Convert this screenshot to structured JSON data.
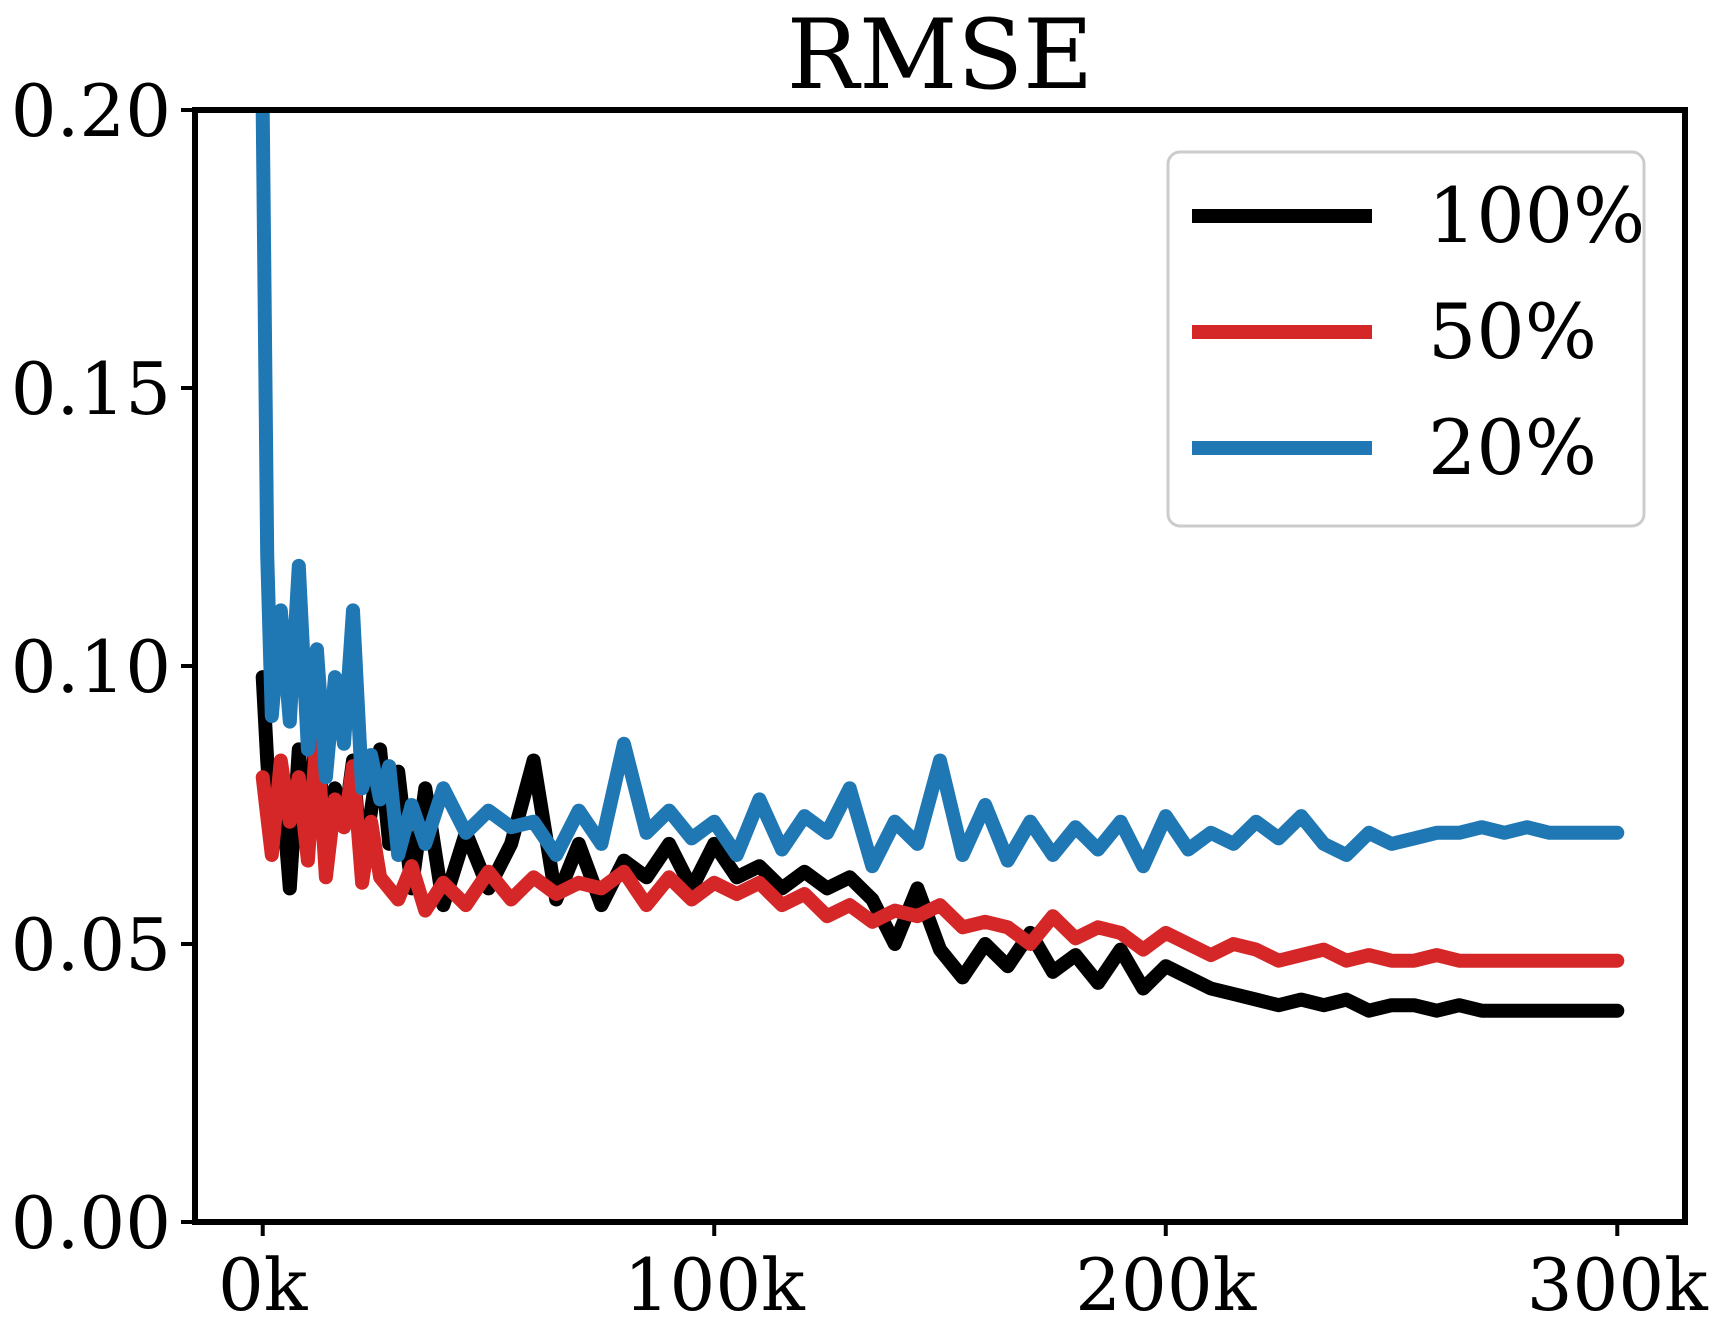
{
  "chart_data": {
    "type": "line",
    "title": "RMSE",
    "xlabel": "",
    "ylabel": "",
    "xlim": [
      -15000,
      315000
    ],
    "ylim": [
      0.0,
      0.2
    ],
    "xticks": [
      0,
      100000,
      200000,
      300000
    ],
    "xtick_labels": [
      "0k",
      "100k",
      "200k",
      "300k"
    ],
    "yticks": [
      0.0,
      0.05,
      0.1,
      0.15,
      0.2
    ],
    "ytick_labels": [
      "0.00",
      "0.05",
      "0.10",
      "0.15",
      "0.20"
    ],
    "grid": false,
    "legend_position": "top-right",
    "x": [
      0,
      1000,
      2000,
      4000,
      6000,
      8000,
      10000,
      12000,
      14000,
      16000,
      18000,
      20000,
      22000,
      24000,
      26000,
      28000,
      30000,
      33000,
      36000,
      40000,
      45000,
      50000,
      55000,
      60000,
      65000,
      70000,
      75000,
      80000,
      85000,
      90000,
      95000,
      100000,
      105000,
      110000,
      115000,
      120000,
      125000,
      130000,
      135000,
      140000,
      145000,
      150000,
      155000,
      160000,
      165000,
      170000,
      175000,
      180000,
      185000,
      190000,
      195000,
      200000,
      205000,
      210000,
      215000,
      220000,
      225000,
      230000,
      235000,
      240000,
      245000,
      250000,
      255000,
      260000,
      265000,
      270000,
      275000,
      280000,
      285000,
      290000,
      295000,
      300000
    ],
    "series": [
      {
        "name": "100%",
        "color": "#000000",
        "values": [
          0.098,
          0.083,
          0.071,
          0.08,
          0.06,
          0.085,
          0.066,
          0.091,
          0.064,
          0.078,
          0.071,
          0.083,
          0.063,
          0.074,
          0.085,
          0.068,
          0.081,
          0.06,
          0.078,
          0.057,
          0.07,
          0.06,
          0.068,
          0.083,
          0.058,
          0.068,
          0.057,
          0.065,
          0.062,
          0.068,
          0.06,
          0.068,
          0.062,
          0.064,
          0.06,
          0.063,
          0.06,
          0.062,
          0.058,
          0.05,
          0.06,
          0.049,
          0.044,
          0.05,
          0.046,
          0.052,
          0.045,
          0.048,
          0.043,
          0.049,
          0.042,
          0.046,
          0.044,
          0.042,
          0.041,
          0.04,
          0.039,
          0.04,
          0.039,
          0.04,
          0.038,
          0.039,
          0.039,
          0.038,
          0.039,
          0.038,
          0.038,
          0.038,
          0.038,
          0.038,
          0.038,
          0.038
        ]
      },
      {
        "name": "50%",
        "color": "#d62728",
        "values": [
          0.08,
          0.073,
          0.066,
          0.083,
          0.072,
          0.08,
          0.065,
          0.088,
          0.062,
          0.076,
          0.071,
          0.082,
          0.061,
          0.072,
          0.062,
          0.06,
          0.058,
          0.064,
          0.056,
          0.061,
          0.057,
          0.063,
          0.058,
          0.062,
          0.059,
          0.061,
          0.06,
          0.063,
          0.057,
          0.062,
          0.058,
          0.061,
          0.059,
          0.061,
          0.057,
          0.059,
          0.055,
          0.057,
          0.054,
          0.056,
          0.055,
          0.057,
          0.053,
          0.054,
          0.053,
          0.05,
          0.055,
          0.051,
          0.053,
          0.052,
          0.049,
          0.052,
          0.05,
          0.048,
          0.05,
          0.049,
          0.047,
          0.048,
          0.049,
          0.047,
          0.048,
          0.047,
          0.047,
          0.048,
          0.047,
          0.047,
          0.047,
          0.047,
          0.047,
          0.047,
          0.047,
          0.047
        ]
      },
      {
        "name": "20%",
        "color": "#1f77b4",
        "values": [
          0.2,
          0.12,
          0.091,
          0.11,
          0.09,
          0.118,
          0.085,
          0.103,
          0.08,
          0.098,
          0.086,
          0.11,
          0.078,
          0.084,
          0.076,
          0.082,
          0.066,
          0.075,
          0.068,
          0.078,
          0.07,
          0.074,
          0.071,
          0.072,
          0.066,
          0.074,
          0.068,
          0.086,
          0.07,
          0.074,
          0.069,
          0.072,
          0.066,
          0.076,
          0.067,
          0.073,
          0.07,
          0.078,
          0.064,
          0.072,
          0.068,
          0.083,
          0.066,
          0.075,
          0.065,
          0.072,
          0.066,
          0.071,
          0.067,
          0.072,
          0.064,
          0.073,
          0.067,
          0.07,
          0.068,
          0.072,
          0.069,
          0.073,
          0.068,
          0.066,
          0.07,
          0.068,
          0.069,
          0.07,
          0.07,
          0.071,
          0.07,
          0.071,
          0.07,
          0.07,
          0.07,
          0.07
        ]
      }
    ]
  }
}
